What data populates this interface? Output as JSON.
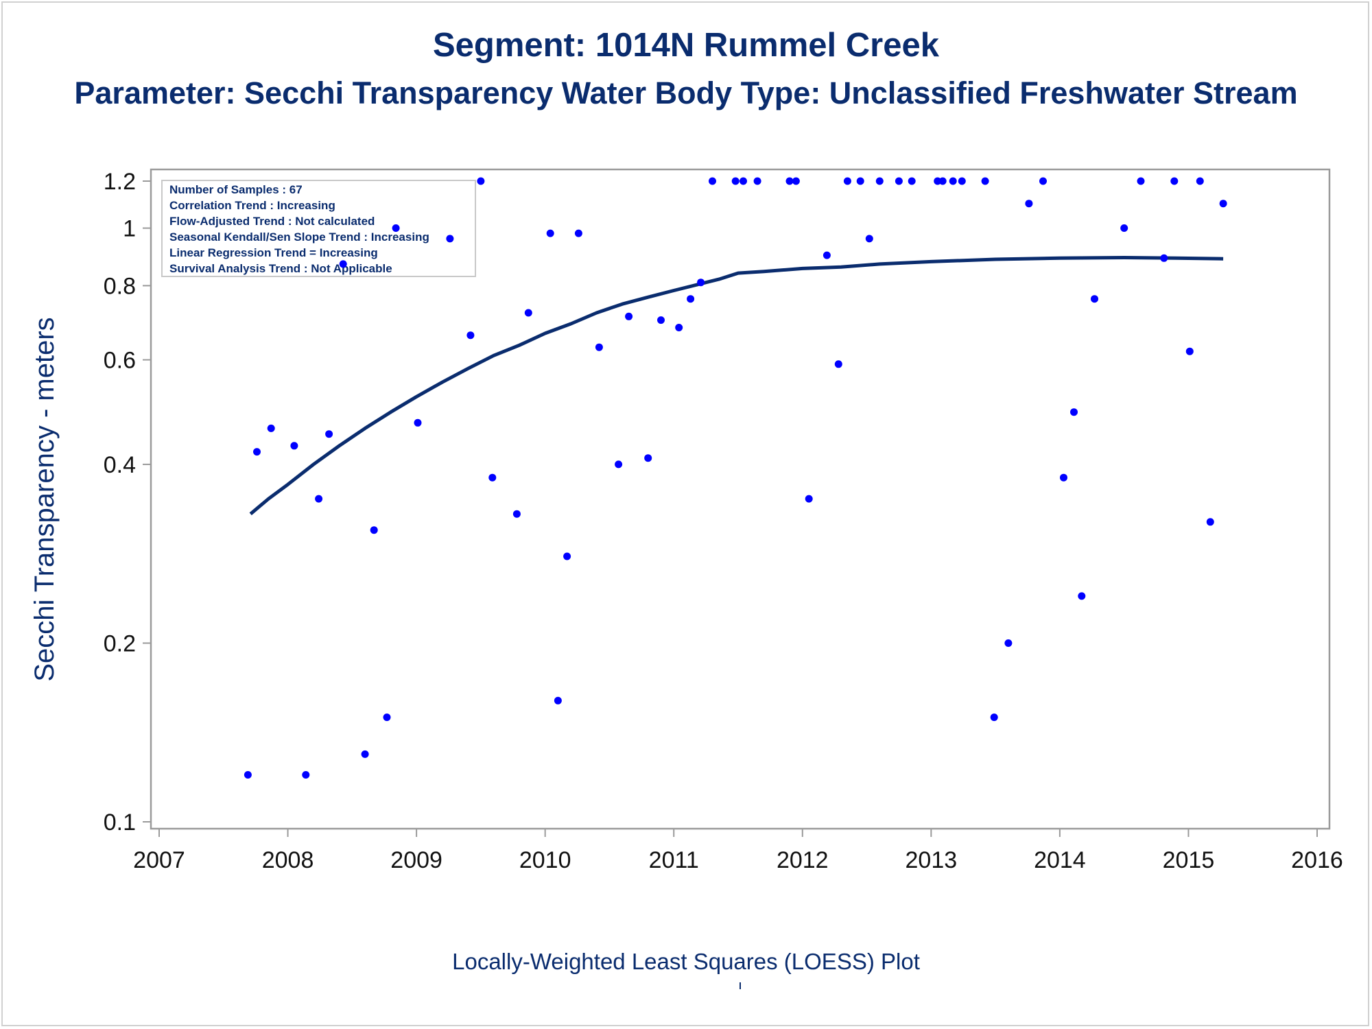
{
  "title": "Segment: 1014N  Rummel Creek",
  "subtitle": "Parameter: Secchi Transparency   Water Body Type: Unclassified Freshwater Stream",
  "caption": "Locally-Weighted Least Squares (LOESS) Plot",
  "caption_mark": "'",
  "stats_box": [
    "Number of Samples : 67",
    "Correlation Trend : Increasing",
    "Flow-Adjusted Trend : Not calculated",
    "Seasonal Kendall/Sen Slope Trend : Increasing",
    "Linear Regression Trend = Increasing",
    "Survival Analysis Trend : Not Applicable"
  ],
  "colors": {
    "text": "#0a2c6e",
    "points": "#0000ff",
    "line": "#0a2c6e",
    "axis": "#9a9a9a"
  },
  "chart_data": {
    "type": "scatter",
    "xlabel": "",
    "ylabel": "Secchi Transparency - meters",
    "y_scale": "log",
    "xlim": [
      2007,
      2016
    ],
    "ylim": [
      0.1,
      1.2
    ],
    "xticks": [
      2007,
      2008,
      2009,
      2010,
      2011,
      2012,
      2013,
      2014,
      2015,
      2016
    ],
    "yticks": [
      0.1,
      0.2,
      0.4,
      0.6,
      0.8,
      1,
      1.2
    ],
    "grid": false,
    "points": [
      [
        2007.69,
        0.12
      ],
      [
        2007.76,
        0.42
      ],
      [
        2007.87,
        0.46
      ],
      [
        2008.05,
        0.43
      ],
      [
        2008.14,
        0.12
      ],
      [
        2008.24,
        0.35
      ],
      [
        2008.32,
        0.45
      ],
      [
        2008.43,
        0.87
      ],
      [
        2008.6,
        0.13
      ],
      [
        2008.67,
        0.31
      ],
      [
        2008.77,
        0.15
      ],
      [
        2008.84,
        1.0
      ],
      [
        2009.01,
        0.47
      ],
      [
        2009.26,
        0.96
      ],
      [
        2009.42,
        0.66
      ],
      [
        2009.5,
        1.2
      ],
      [
        2009.59,
        0.38
      ],
      [
        2009.78,
        0.33
      ],
      [
        2009.87,
        0.72
      ],
      [
        2010.04,
        0.98
      ],
      [
        2010.1,
        0.16
      ],
      [
        2010.17,
        0.28
      ],
      [
        2010.26,
        0.98
      ],
      [
        2010.42,
        0.63
      ],
      [
        2010.57,
        0.4
      ],
      [
        2010.65,
        0.71
      ],
      [
        2010.8,
        0.41
      ],
      [
        2010.9,
        0.7
      ],
      [
        2011.04,
        0.68
      ],
      [
        2011.13,
        0.76
      ],
      [
        2011.21,
        0.81
      ],
      [
        2011.3,
        1.2
      ],
      [
        2011.48,
        1.2
      ],
      [
        2011.54,
        1.2
      ],
      [
        2011.65,
        1.2
      ],
      [
        2011.9,
        1.2
      ],
      [
        2011.95,
        1.2
      ],
      [
        2012.05,
        0.35
      ],
      [
        2012.19,
        0.9
      ],
      [
        2012.28,
        0.59
      ],
      [
        2012.35,
        1.2
      ],
      [
        2012.45,
        1.2
      ],
      [
        2012.52,
        0.96
      ],
      [
        2012.6,
        1.2
      ],
      [
        2012.75,
        1.2
      ],
      [
        2012.85,
        1.2
      ],
      [
        2013.05,
        1.2
      ],
      [
        2013.09,
        1.2
      ],
      [
        2013.17,
        1.2
      ],
      [
        2013.24,
        1.2
      ],
      [
        2013.42,
        1.2
      ],
      [
        2013.49,
        0.15
      ],
      [
        2013.6,
        0.2
      ],
      [
        2013.76,
        1.1
      ],
      [
        2013.87,
        1.2
      ],
      [
        2014.03,
        0.38
      ],
      [
        2014.11,
        0.49
      ],
      [
        2014.17,
        0.24
      ],
      [
        2014.27,
        0.76
      ],
      [
        2014.5,
        1.0
      ],
      [
        2014.63,
        1.2
      ],
      [
        2014.81,
        0.89
      ],
      [
        2014.89,
        1.2
      ],
      [
        2015.01,
        0.62
      ],
      [
        2015.09,
        1.2
      ],
      [
        2015.17,
        0.32
      ],
      [
        2015.27,
        1.1
      ]
    ],
    "loess_line": [
      [
        2007.71,
        0.33
      ],
      [
        2007.85,
        0.35
      ],
      [
        2008.0,
        0.37
      ],
      [
        2008.2,
        0.4
      ],
      [
        2008.4,
        0.43
      ],
      [
        2008.6,
        0.46
      ],
      [
        2008.8,
        0.49
      ],
      [
        2009.0,
        0.52
      ],
      [
        2009.2,
        0.55
      ],
      [
        2009.4,
        0.58
      ],
      [
        2009.6,
        0.61
      ],
      [
        2009.8,
        0.635
      ],
      [
        2010.0,
        0.665
      ],
      [
        2010.2,
        0.69
      ],
      [
        2010.4,
        0.72
      ],
      [
        2010.6,
        0.745
      ],
      [
        2010.8,
        0.765
      ],
      [
        2011.0,
        0.785
      ],
      [
        2011.2,
        0.805
      ],
      [
        2011.35,
        0.82
      ],
      [
        2011.5,
        0.84
      ],
      [
        2011.7,
        0.845
      ],
      [
        2012.0,
        0.855
      ],
      [
        2012.3,
        0.86
      ],
      [
        2012.6,
        0.87
      ],
      [
        2013.0,
        0.878
      ],
      [
        2013.5,
        0.886
      ],
      [
        2014.0,
        0.89
      ],
      [
        2014.5,
        0.892
      ],
      [
        2014.9,
        0.89
      ],
      [
        2015.27,
        0.888
      ]
    ]
  }
}
